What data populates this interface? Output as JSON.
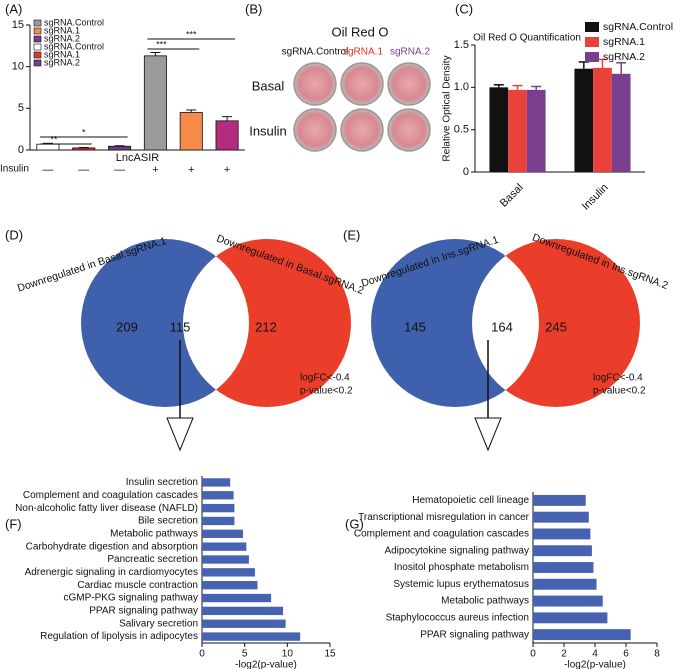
{
  "chart_data": [
    {
      "type": "bar",
      "panel_label": "(A)",
      "x_label": "LncASIR",
      "row_label": "Insulin",
      "categories": [
        "—",
        "—",
        "—",
        "+",
        "+",
        "+"
      ],
      "values": [
        0.7,
        0.25,
        0.45,
        11.3,
        4.5,
        3.5
      ],
      "errors": [
        0.1,
        0.05,
        0.06,
        0.4,
        0.3,
        0.5
      ],
      "colors": [
        "#ffffff",
        "#e03a2f",
        "#6b3b86",
        "#9b9b9b",
        "#f58a4a",
        "#b52b7f"
      ],
      "legend": [
        {
          "name": "sgRNA.Control",
          "color": "#9b9b9b"
        },
        {
          "name": "sgRNA.1",
          "color": "#f58a4a"
        },
        {
          "name": "sgRNA.2",
          "color": "#7a3e8e"
        },
        {
          "name": "sgRNA.Control",
          "color": "#ffffff"
        },
        {
          "name": "sgRNA.1",
          "color": "#e03a2f"
        },
        {
          "name": "sgRNA.2",
          "color": "#7a3e8e"
        }
      ],
      "annotations": [
        "*",
        "**",
        "***",
        "***"
      ],
      "ylim": [
        0,
        15
      ],
      "yticks": [
        0,
        5,
        10,
        15
      ]
    },
    {
      "type": "grouped_bar",
      "panel_label": "(C)",
      "title": "Oil Red O Quantification",
      "y_label": "Relative Optical Density",
      "categories": [
        "Basal",
        "Insulin"
      ],
      "series": [
        {
          "name": "sgRNA.Control",
          "color": "#111111",
          "values": [
            1.0,
            1.22
          ],
          "errors": [
            0.03,
            0.08
          ]
        },
        {
          "name": "sgRNA.1",
          "color": "#e8423a",
          "values": [
            0.97,
            1.23
          ],
          "errors": [
            0.05,
            0.1
          ]
        },
        {
          "name": "sgRNA.2",
          "color": "#7a3e8e",
          "values": [
            0.97,
            1.16
          ],
          "errors": [
            0.04,
            0.13
          ]
        }
      ],
      "ylim": [
        0,
        1.5
      ],
      "yticks": [
        0,
        {
          "value": 0.5,
          "label": "0.5"
        },
        {
          "value": 1,
          "label": "1.0"
        },
        {
          "value": 1.5,
          "label": "1.5"
        }
      ]
    },
    {
      "type": "hbar",
      "panel_label": "(F)",
      "x_label": "-log2(p-value)",
      "color": "#4862b2",
      "categories": [
        "Insulin secretion",
        "Complement and coagulation cascades",
        "Non-alcoholic fatty liver disease (NAFLD)",
        "Bile secretion",
        "Metabolic pathways",
        "Carbohydrate digestion and absorption",
        "Pancreatic secretion",
        "Adrenergic signaling in cardiomyocytes",
        "Cardiac muscle contraction",
        "cGMP-PKG signaling pathway",
        "PPAR signaling pathway",
        "Salivary secretion",
        "Regulation of lipolysis in adipocytes"
      ],
      "values": [
        3.3,
        3.7,
        3.8,
        3.8,
        4.8,
        5.2,
        5.5,
        6.2,
        6.5,
        8.1,
        9.5,
        9.8,
        11.5
      ],
      "xlim": [
        0,
        15
      ],
      "xticks": [
        0,
        5,
        10,
        15
      ]
    },
    {
      "type": "hbar",
      "panel_label": "(G)",
      "x_label": "-log2(p-value)",
      "color": "#4862b2",
      "categories": [
        "Hematopoietic cell lineage",
        "Transcriptional misregulation in cancer",
        "Complement and coagulation cascades",
        "Adipocytokine signaling pathway",
        "Inositol phosphate metabolism",
        "Systemic lupus erythematosus",
        "Metabolic pathways",
        "Staphylococcus aureus infection",
        "PPAR signaling pathway"
      ],
      "values": [
        3.4,
        3.6,
        3.7,
        3.8,
        3.9,
        4.1,
        4.5,
        4.8,
        6.3
      ],
      "xlim": [
        0,
        8
      ],
      "xticks": [
        0,
        2,
        4,
        6,
        8
      ]
    }
  ],
  "oil_red_o": {
    "panel_label": "(B)",
    "title": "Oil Red O",
    "columns": [
      "sgRNA.Control",
      "sgRNA.1",
      "sgRNA.2"
    ],
    "rows": [
      "Basal",
      "Insulin"
    ]
  },
  "venn": [
    {
      "panel_label": "(D)",
      "left_label": "Downregulated in Basal.sgRNA.1",
      "right_label": "Downregulated in Basal.sgRNA.2",
      "left_only": 209,
      "both": 115,
      "right_only": 212,
      "criteria": [
        "logFC<-0.4",
        "p-value<0.2"
      ]
    },
    {
      "panel_label": "(E)",
      "left_label": "Downregulated in Ins.sgRNA.1",
      "right_label": "Downregulated in Ins.sgRNA.2",
      "left_only": 145,
      "both": 164,
      "right_only": 245,
      "criteria": [
        "logFC<-0.4",
        "p-value<0.2"
      ]
    }
  ]
}
